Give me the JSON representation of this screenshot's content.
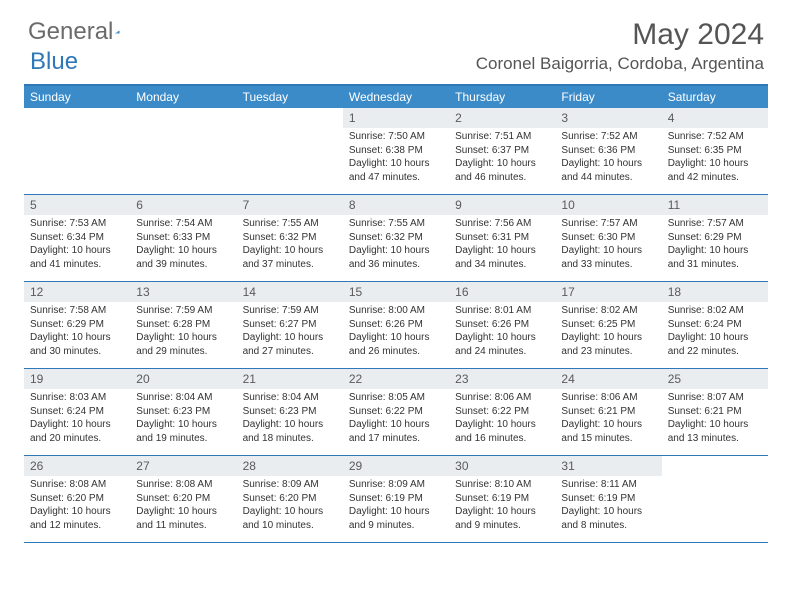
{
  "logo": {
    "text1": "General",
    "text2": "Blue",
    "text1_color": "#6b6b6b",
    "text2_color": "#2f78b7",
    "triangle_color": "#2f78b7"
  },
  "title": "May 2024",
  "location": "Coronel Baigorria, Cordoba, Argentina",
  "colors": {
    "header_bg": "#3b8bc9",
    "border": "#2f78b7",
    "daynum_bg": "#e9edf0",
    "text": "#333333"
  },
  "dow": [
    "Sunday",
    "Monday",
    "Tuesday",
    "Wednesday",
    "Thursday",
    "Friday",
    "Saturday"
  ],
  "weeks": [
    [
      null,
      null,
      null,
      {
        "n": "1",
        "sr": "Sunrise: 7:50 AM",
        "ss": "Sunset: 6:38 PM",
        "dl": "Daylight: 10 hours and 47 minutes."
      },
      {
        "n": "2",
        "sr": "Sunrise: 7:51 AM",
        "ss": "Sunset: 6:37 PM",
        "dl": "Daylight: 10 hours and 46 minutes."
      },
      {
        "n": "3",
        "sr": "Sunrise: 7:52 AM",
        "ss": "Sunset: 6:36 PM",
        "dl": "Daylight: 10 hours and 44 minutes."
      },
      {
        "n": "4",
        "sr": "Sunrise: 7:52 AM",
        "ss": "Sunset: 6:35 PM",
        "dl": "Daylight: 10 hours and 42 minutes."
      }
    ],
    [
      {
        "n": "5",
        "sr": "Sunrise: 7:53 AM",
        "ss": "Sunset: 6:34 PM",
        "dl": "Daylight: 10 hours and 41 minutes."
      },
      {
        "n": "6",
        "sr": "Sunrise: 7:54 AM",
        "ss": "Sunset: 6:33 PM",
        "dl": "Daylight: 10 hours and 39 minutes."
      },
      {
        "n": "7",
        "sr": "Sunrise: 7:55 AM",
        "ss": "Sunset: 6:32 PM",
        "dl": "Daylight: 10 hours and 37 minutes."
      },
      {
        "n": "8",
        "sr": "Sunrise: 7:55 AM",
        "ss": "Sunset: 6:32 PM",
        "dl": "Daylight: 10 hours and 36 minutes."
      },
      {
        "n": "9",
        "sr": "Sunrise: 7:56 AM",
        "ss": "Sunset: 6:31 PM",
        "dl": "Daylight: 10 hours and 34 minutes."
      },
      {
        "n": "10",
        "sr": "Sunrise: 7:57 AM",
        "ss": "Sunset: 6:30 PM",
        "dl": "Daylight: 10 hours and 33 minutes."
      },
      {
        "n": "11",
        "sr": "Sunrise: 7:57 AM",
        "ss": "Sunset: 6:29 PM",
        "dl": "Daylight: 10 hours and 31 minutes."
      }
    ],
    [
      {
        "n": "12",
        "sr": "Sunrise: 7:58 AM",
        "ss": "Sunset: 6:29 PM",
        "dl": "Daylight: 10 hours and 30 minutes."
      },
      {
        "n": "13",
        "sr": "Sunrise: 7:59 AM",
        "ss": "Sunset: 6:28 PM",
        "dl": "Daylight: 10 hours and 29 minutes."
      },
      {
        "n": "14",
        "sr": "Sunrise: 7:59 AM",
        "ss": "Sunset: 6:27 PM",
        "dl": "Daylight: 10 hours and 27 minutes."
      },
      {
        "n": "15",
        "sr": "Sunrise: 8:00 AM",
        "ss": "Sunset: 6:26 PM",
        "dl": "Daylight: 10 hours and 26 minutes."
      },
      {
        "n": "16",
        "sr": "Sunrise: 8:01 AM",
        "ss": "Sunset: 6:26 PM",
        "dl": "Daylight: 10 hours and 24 minutes."
      },
      {
        "n": "17",
        "sr": "Sunrise: 8:02 AM",
        "ss": "Sunset: 6:25 PM",
        "dl": "Daylight: 10 hours and 23 minutes."
      },
      {
        "n": "18",
        "sr": "Sunrise: 8:02 AM",
        "ss": "Sunset: 6:24 PM",
        "dl": "Daylight: 10 hours and 22 minutes."
      }
    ],
    [
      {
        "n": "19",
        "sr": "Sunrise: 8:03 AM",
        "ss": "Sunset: 6:24 PM",
        "dl": "Daylight: 10 hours and 20 minutes."
      },
      {
        "n": "20",
        "sr": "Sunrise: 8:04 AM",
        "ss": "Sunset: 6:23 PM",
        "dl": "Daylight: 10 hours and 19 minutes."
      },
      {
        "n": "21",
        "sr": "Sunrise: 8:04 AM",
        "ss": "Sunset: 6:23 PM",
        "dl": "Daylight: 10 hours and 18 minutes."
      },
      {
        "n": "22",
        "sr": "Sunrise: 8:05 AM",
        "ss": "Sunset: 6:22 PM",
        "dl": "Daylight: 10 hours and 17 minutes."
      },
      {
        "n": "23",
        "sr": "Sunrise: 8:06 AM",
        "ss": "Sunset: 6:22 PM",
        "dl": "Daylight: 10 hours and 16 minutes."
      },
      {
        "n": "24",
        "sr": "Sunrise: 8:06 AM",
        "ss": "Sunset: 6:21 PM",
        "dl": "Daylight: 10 hours and 15 minutes."
      },
      {
        "n": "25",
        "sr": "Sunrise: 8:07 AM",
        "ss": "Sunset: 6:21 PM",
        "dl": "Daylight: 10 hours and 13 minutes."
      }
    ],
    [
      {
        "n": "26",
        "sr": "Sunrise: 8:08 AM",
        "ss": "Sunset: 6:20 PM",
        "dl": "Daylight: 10 hours and 12 minutes."
      },
      {
        "n": "27",
        "sr": "Sunrise: 8:08 AM",
        "ss": "Sunset: 6:20 PM",
        "dl": "Daylight: 10 hours and 11 minutes."
      },
      {
        "n": "28",
        "sr": "Sunrise: 8:09 AM",
        "ss": "Sunset: 6:20 PM",
        "dl": "Daylight: 10 hours and 10 minutes."
      },
      {
        "n": "29",
        "sr": "Sunrise: 8:09 AM",
        "ss": "Sunset: 6:19 PM",
        "dl": "Daylight: 10 hours and 9 minutes."
      },
      {
        "n": "30",
        "sr": "Sunrise: 8:10 AM",
        "ss": "Sunset: 6:19 PM",
        "dl": "Daylight: 10 hours and 9 minutes."
      },
      {
        "n": "31",
        "sr": "Sunrise: 8:11 AM",
        "ss": "Sunset: 6:19 PM",
        "dl": "Daylight: 10 hours and 8 minutes."
      },
      null
    ]
  ]
}
